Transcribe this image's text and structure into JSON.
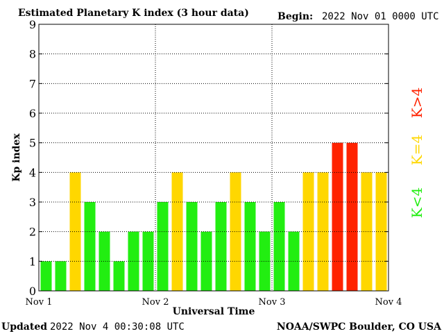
{
  "header": {
    "title": "Estimated Planetary K index (3 hour data)",
    "begin_label": "Begin:",
    "begin_value": "2022 Nov 01 0000 UTC"
  },
  "footer": {
    "updated_label": "Updated",
    "updated_value": "2022 Nov  4 00:30:08 UTC",
    "credit": "NOAA/SWPC Boulder, CO USA"
  },
  "legend": {
    "low": "K<4",
    "equal": "K=4",
    "high": "K>4"
  },
  "colors": {
    "low": "#22ee11",
    "equal": "#ffd700",
    "high": "#ff2200",
    "axis": "#000000",
    "grid": "#000000"
  },
  "chart_data": {
    "type": "bar",
    "title": "Estimated Planetary K index (3 hour data)",
    "xlabel": "Universal Time",
    "ylabel": "Kp index",
    "ylim": [
      0,
      9
    ],
    "yticks": [
      "0",
      "1",
      "2",
      "3",
      "4",
      "5",
      "6",
      "7",
      "8",
      "9"
    ],
    "xticks": [
      "Nov 1",
      "Nov 2",
      "Nov 3",
      "Nov 4"
    ],
    "grid": true,
    "values": [
      1,
      1,
      4,
      3,
      2,
      1,
      2,
      2,
      3,
      4,
      3,
      2,
      3,
      4,
      3,
      2,
      3,
      2,
      4,
      4,
      5,
      5,
      4,
      4
    ]
  }
}
